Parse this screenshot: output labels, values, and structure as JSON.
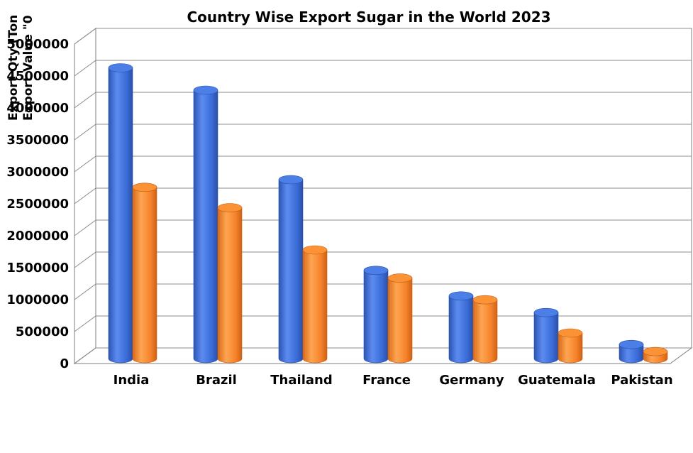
{
  "chart_data": {
    "type": "bar",
    "title": "Country Wise Export Sugar in the World 2023",
    "ylabel_lines": [
      "Export Qty (Ton",
      "Export Value \"0"
    ],
    "categories": [
      "India",
      "Brazil",
      "Thailand",
      "France",
      "Germany",
      "Guatemala",
      "Pakistan"
    ],
    "series": [
      {
        "color": "#3b6fd8",
        "values": [
          4550000,
          4200000,
          2800000,
          1380000,
          980000,
          720000,
          220000
        ]
      },
      {
        "color": "#f5822a",
        "values": [
          2680000,
          2360000,
          1700000,
          1260000,
          920000,
          400000,
          110000
        ]
      }
    ],
    "y_ticks": [
      "0",
      "500000",
      "1000000",
      "1500000",
      "2000000",
      "2500000",
      "3000000",
      "3500000",
      "4000000",
      "4500000",
      "5000000"
    ],
    "ylim": [
      0,
      5000000
    ],
    "grid": true,
    "legend": "none"
  }
}
